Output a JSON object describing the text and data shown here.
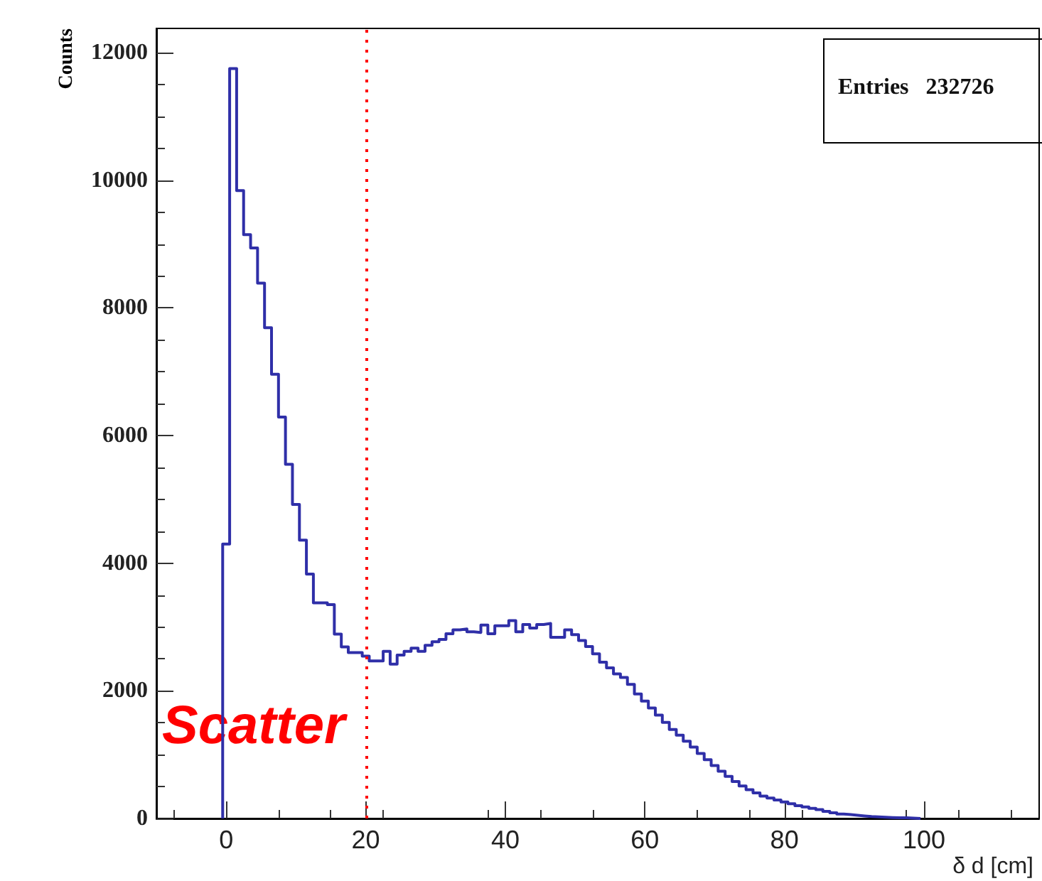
{
  "chart_data": {
    "type": "histogram",
    "bins": [
      -0.5,
      0.5,
      1.5,
      2.5,
      3.5,
      4.5,
      5.5,
      6.5,
      7.5,
      8.5,
      9.5,
      10.5,
      11.5,
      12.5,
      13.5,
      14.5,
      15.5,
      16.5,
      17.5,
      18.5,
      19.5,
      20.5,
      21.5,
      22.5,
      23.5,
      24.5,
      25.5,
      26.5,
      27.5,
      28.5,
      29.5,
      30.5,
      31.5,
      32.5,
      33.5,
      34.5,
      35.5,
      36.5,
      37.5,
      38.5,
      39.5,
      40.5,
      41.5,
      42.5,
      43.5,
      44.5,
      45.5,
      46.5,
      47.5,
      48.5,
      49.5,
      50.5,
      51.5,
      52.5,
      53.5,
      54.5,
      55.5,
      56.5,
      57.5,
      58.5,
      59.5,
      60.5,
      61.5,
      62.5,
      63.5,
      64.5,
      65.5,
      66.5,
      67.5,
      68.5,
      69.5,
      70.5,
      71.5,
      72.5,
      73.5,
      74.5,
      75.5,
      76.5,
      77.5,
      78.5,
      79.5,
      80.5,
      81.5,
      82.5,
      83.5,
      84.5,
      85.5,
      86.5,
      87.5,
      88.5,
      89.5,
      90.5,
      91.5,
      92.5,
      93.5,
      94.5,
      95.5,
      96.5,
      97.5,
      98.5,
      99.5
    ],
    "values": [
      4300,
      11750,
      9840,
      9150,
      8940,
      8390,
      7690,
      6960,
      6290,
      5550,
      4920,
      4360,
      3830,
      3380,
      3380,
      3350,
      2890,
      2690,
      2600,
      2600,
      2545,
      2470,
      2470,
      2620,
      2420,
      2560,
      2620,
      2670,
      2620,
      2715,
      2770,
      2805,
      2895,
      2955,
      2970,
      2925,
      2915,
      3030,
      2895,
      3020,
      3020,
      3100,
      2925,
      3040,
      2985,
      3040,
      3055,
      2840,
      2840,
      2955,
      2880,
      2790,
      2695,
      2580,
      2450,
      2360,
      2265,
      2210,
      2100,
      1950,
      1840,
      1730,
      1620,
      1505,
      1395,
      1305,
      1210,
      1120,
      1020,
      920,
      830,
      740,
      660,
      580,
      510,
      450,
      400,
      350,
      320,
      290,
      260,
      230,
      200,
      180,
      160,
      140,
      110,
      90,
      70,
      60,
      50,
      40,
      30,
      25,
      20,
      15,
      10,
      10,
      5,
      0
    ],
    "color": "#2f2fa8",
    "xlabel": "δ d [cm]",
    "ylabel": "Counts",
    "xlim": [
      -10,
      116.5
    ],
    "xticks": [
      0,
      20,
      40,
      60,
      80,
      100
    ],
    "ylim": [
      0,
      12380
    ],
    "yticks": [
      0,
      2000,
      4000,
      6000,
      8000,
      10000,
      12000
    ],
    "ref_lines": [
      {
        "axis": "x",
        "value": 20,
        "color": "#ff0000",
        "line_style": "dotted"
      }
    ],
    "annotations": [
      "Entries   232726",
      "Scatter"
    ],
    "grid": false
  }
}
